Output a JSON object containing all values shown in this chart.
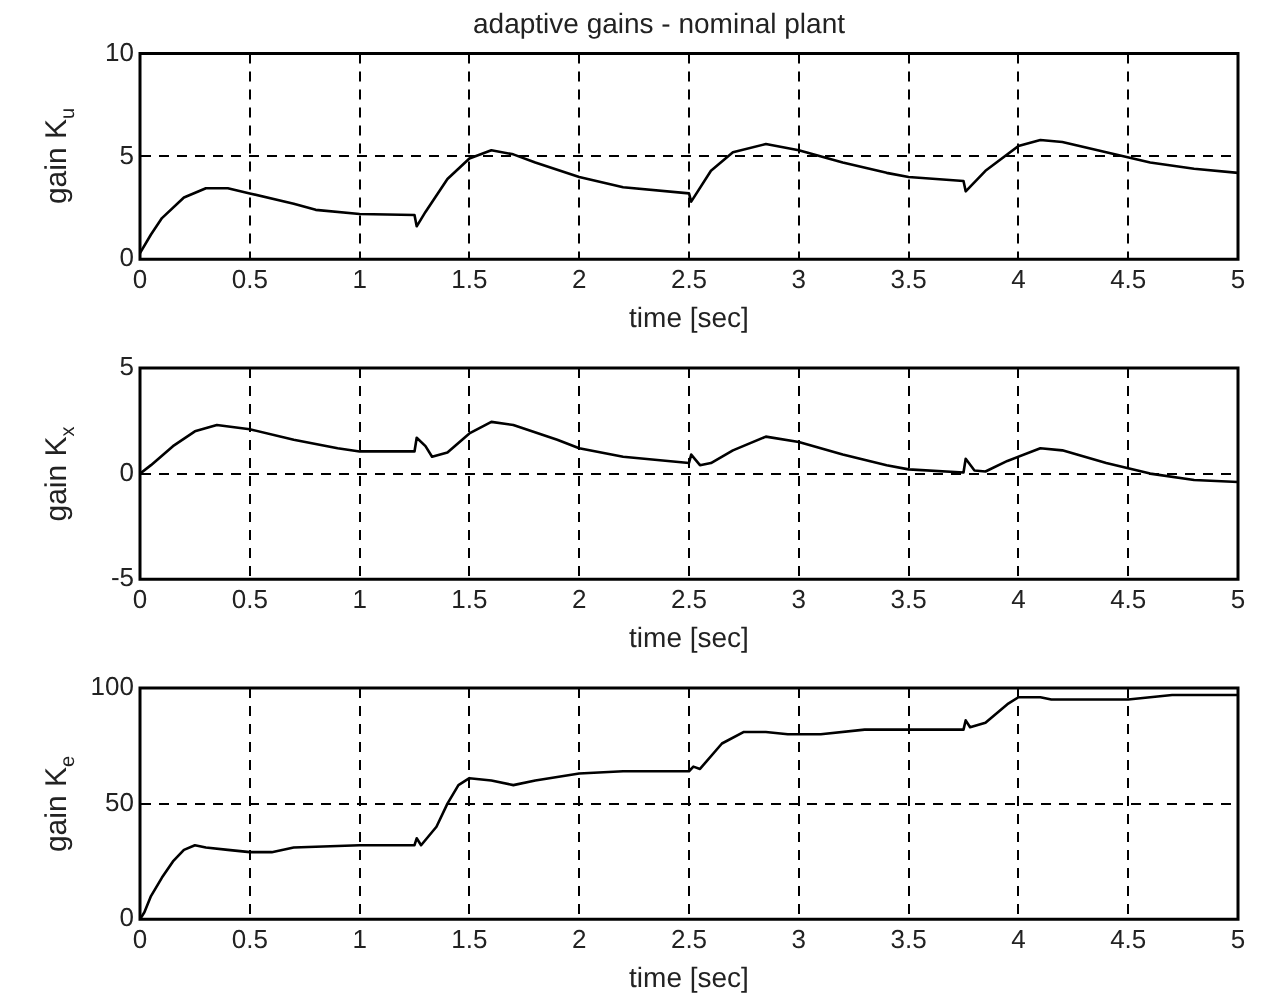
{
  "chart_data": [
    {
      "type": "line",
      "title": "adaptive gains - nominal plant",
      "xlabel": "time [sec]",
      "ylabel": "gain K$_{u}$",
      "xlim": [
        0,
        5
      ],
      "xticks": [
        0,
        0.5,
        1,
        1.5,
        2,
        2.5,
        3,
        3.5,
        4,
        4.5,
        5
      ],
      "ylim": [
        0,
        10
      ],
      "yticks": [
        0,
        5,
        10
      ],
      "grid": true,
      "legend": false,
      "series": [
        {
          "color": "#000000",
          "x": [
            0,
            0.05,
            0.1,
            0.2,
            0.3,
            0.4,
            0.5,
            0.7,
            0.8,
            1,
            1.25,
            1.26,
            1.3,
            1.4,
            1.5,
            1.6,
            1.7,
            1.8,
            2,
            2.2,
            2.5,
            2.51,
            2.6,
            2.7,
            2.85,
            3,
            3.2,
            3.4,
            3.5,
            3.75,
            3.76,
            3.85,
            4,
            4.1,
            4.2,
            4.4,
            4.6,
            4.8,
            5
          ],
          "values": [
            0.3,
            1.2,
            2,
            3,
            3.45,
            3.45,
            3.2,
            2.7,
            2.4,
            2.2,
            2.15,
            1.6,
            2.3,
            3.9,
            4.9,
            5.3,
            5.1,
            4.7,
            4.0,
            3.5,
            3.2,
            2.8,
            4.3,
            5.2,
            5.6,
            5.3,
            4.7,
            4.2,
            4.0,
            3.8,
            3.3,
            4.3,
            5.5,
            5.8,
            5.7,
            5.2,
            4.7,
            4.4,
            4.2
          ]
        }
      ]
    },
    {
      "type": "line",
      "xlabel": "time [sec]",
      "ylabel": "gain K$_{x}$",
      "xlim": [
        0,
        5
      ],
      "xticks": [
        0,
        0.5,
        1,
        1.5,
        2,
        2.5,
        3,
        3.5,
        4,
        4.5,
        5
      ],
      "ylim": [
        -5,
        5
      ],
      "yticks": [
        -5,
        0,
        5
      ],
      "grid": true,
      "legend": false,
      "series": [
        {
          "color": "#000000",
          "x": [
            0,
            0.05,
            0.15,
            0.25,
            0.35,
            0.5,
            0.7,
            0.9,
            1,
            1.25,
            1.26,
            1.3,
            1.33,
            1.4,
            1.5,
            1.6,
            1.7,
            1.9,
            2,
            2.2,
            2.5,
            2.51,
            2.55,
            2.6,
            2.7,
            2.85,
            3,
            3.2,
            3.4,
            3.5,
            3.75,
            3.76,
            3.8,
            3.85,
            3.95,
            4.1,
            4.2,
            4.4,
            4.6,
            4.8,
            5
          ],
          "values": [
            0,
            0.4,
            1.3,
            2,
            2.3,
            2.1,
            1.6,
            1.2,
            1.05,
            1.05,
            1.7,
            1.3,
            0.8,
            1.0,
            1.9,
            2.45,
            2.3,
            1.6,
            1.2,
            0.8,
            0.5,
            0.9,
            0.4,
            0.5,
            1.1,
            1.75,
            1.5,
            0.9,
            0.4,
            0.2,
            0.05,
            0.7,
            0.15,
            0.1,
            0.6,
            1.2,
            1.1,
            0.5,
            0.0,
            -0.3,
            -0.4
          ]
        }
      ]
    },
    {
      "type": "line",
      "xlabel": "time [sec]",
      "ylabel": "gain K$_{e}$",
      "xlim": [
        0,
        5
      ],
      "xticks": [
        0,
        0.5,
        1,
        1.5,
        2,
        2.5,
        3,
        3.5,
        4,
        4.5,
        5
      ],
      "ylim": [
        0,
        100
      ],
      "yticks": [
        0,
        50,
        100
      ],
      "grid": true,
      "legend": false,
      "series": [
        {
          "color": "#000000",
          "x": [
            0,
            0.02,
            0.05,
            0.1,
            0.15,
            0.2,
            0.25,
            0.3,
            0.4,
            0.5,
            0.6,
            0.7,
            1,
            1.25,
            1.26,
            1.28,
            1.35,
            1.4,
            1.45,
            1.5,
            1.6,
            1.7,
            1.8,
            2,
            2.2,
            2.5,
            2.52,
            2.55,
            2.65,
            2.75,
            2.85,
            2.95,
            3.1,
            3.3,
            3.75,
            3.76,
            3.78,
            3.85,
            3.95,
            4,
            4.1,
            4.15,
            4.5,
            4.7,
            5
          ],
          "values": [
            0,
            3,
            10,
            18,
            25,
            30,
            32,
            31,
            30,
            29,
            29,
            31,
            32,
            32,
            35,
            32,
            40,
            50,
            58,
            61,
            60,
            58,
            60,
            63,
            64,
            64,
            66,
            65,
            76,
            81,
            81,
            80,
            80,
            82,
            82,
            86,
            83,
            85,
            93,
            96,
            96,
            95,
            95,
            97,
            97
          ]
        }
      ]
    }
  ]
}
